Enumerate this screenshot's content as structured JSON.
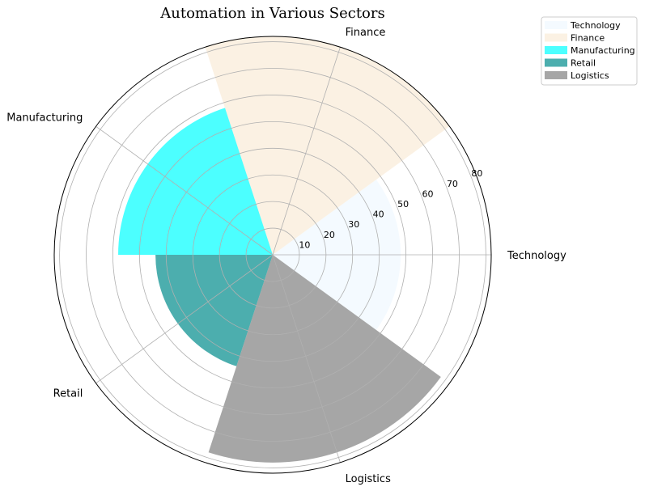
{
  "chart_data": {
    "type": "polar-bar",
    "title": "Automation in Various Sectors",
    "categories": [
      "Technology",
      "Finance",
      "Manufacturing",
      "Retail",
      "Logistics"
    ],
    "values": [
      48,
      82,
      58,
      44,
      78
    ],
    "colors": [
      "#f0f8ff",
      "#faebd7",
      "#00ffff",
      "#008b8b",
      "#808080"
    ],
    "bar_opacity": 0.7,
    "radial_ticks": [
      10,
      20,
      30,
      40,
      50,
      60,
      70,
      80
    ],
    "r_max": 82,
    "grid": true,
    "legend": {
      "placement": "top-right",
      "entries": [
        "Technology",
        "Finance",
        "Manufacturing",
        "Retail",
        "Logistics"
      ]
    }
  }
}
